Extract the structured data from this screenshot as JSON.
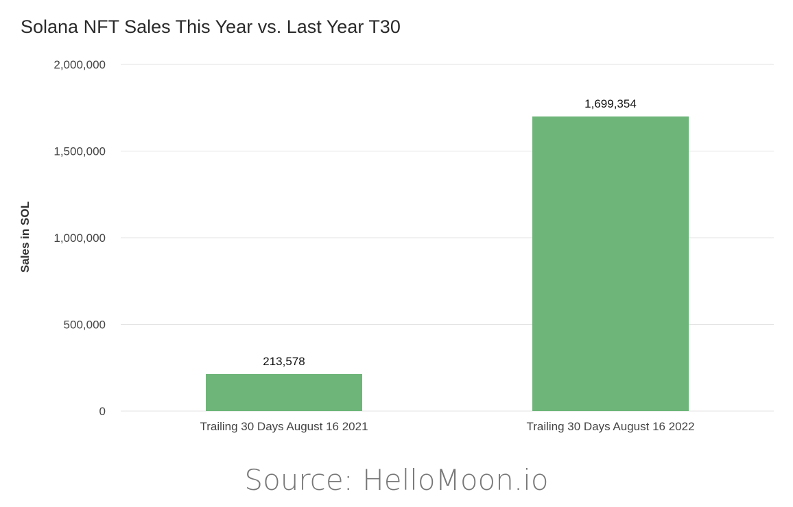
{
  "chart_data": {
    "type": "bar",
    "title": "Solana NFT Sales This Year vs. Last Year T30",
    "xlabel": "",
    "ylabel": "Sales in SOL",
    "ylim": [
      0,
      2000000
    ],
    "yticks": [
      0,
      500000,
      1000000,
      1500000,
      2000000
    ],
    "ytick_labels": [
      "0",
      "500,000",
      "1,000,000",
      "1,500,000",
      "2,000,000"
    ],
    "categories": [
      "Trailing 30 Days August 16 2021",
      "Trailing 30 Days August 16 2022"
    ],
    "values": [
      213578,
      1699354
    ],
    "value_labels": [
      "213,578",
      "1,699,354"
    ],
    "bar_color": "#6db578",
    "grid": true,
    "legend": "none"
  },
  "source": "Source: HelloMoon.io"
}
